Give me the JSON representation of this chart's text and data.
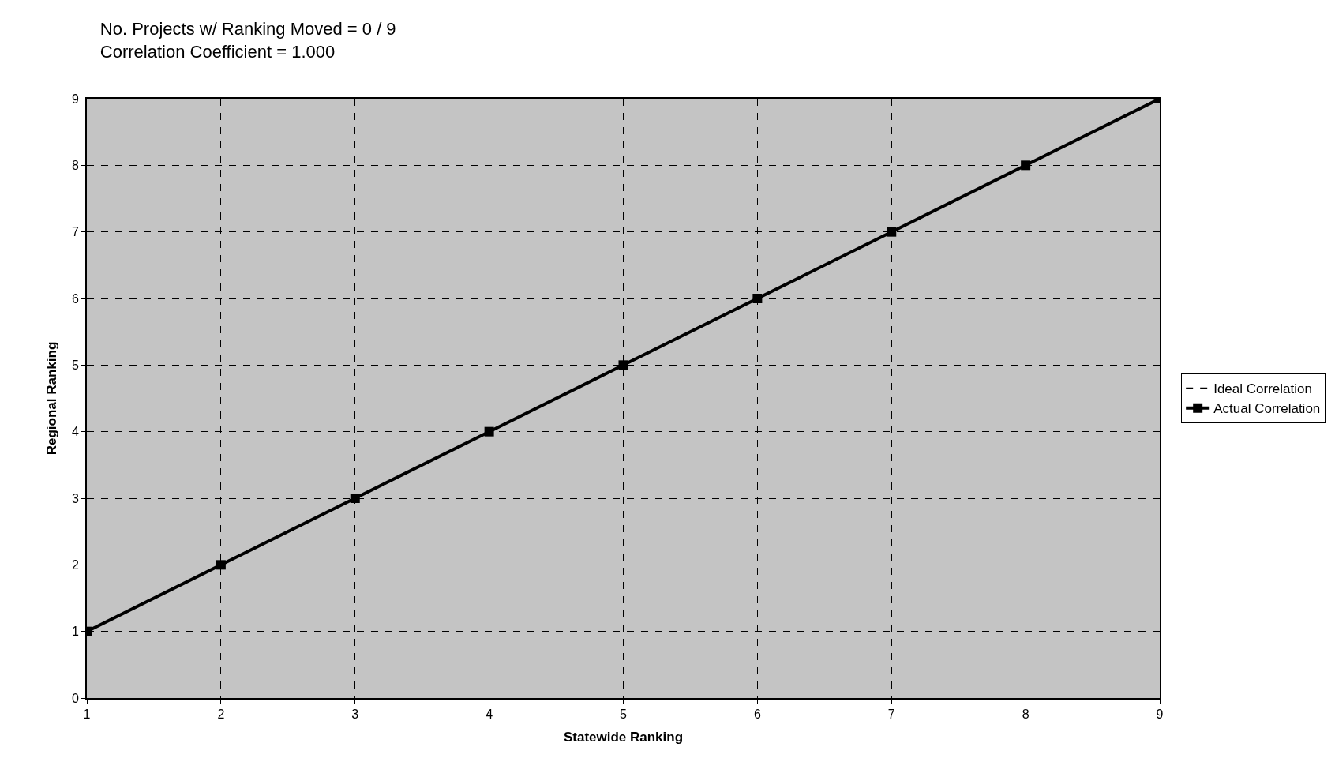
{
  "chart_data": {
    "type": "line",
    "title": "No. Projects w/ Ranking Moved = 0 / 9",
    "subtitle": "Correlation Coefficient = 1.000",
    "xlabel": "Statewide Ranking",
    "ylabel": "Regional Ranking",
    "x": [
      1,
      2,
      3,
      4,
      5,
      6,
      7,
      8,
      9
    ],
    "series": [
      {
        "name": "Ideal Correlation",
        "color": "#000000",
        "line_style": "dashed",
        "marker": "none",
        "values": [
          null,
          null,
          null,
          null,
          null,
          null,
          null,
          null,
          null
        ]
      },
      {
        "name": "Actual Correlation",
        "color": "#000000",
        "line_style": "solid",
        "marker": "square",
        "values": [
          1,
          2,
          3,
          4,
          5,
          6,
          7,
          8,
          9
        ]
      }
    ],
    "xlim": [
      1,
      9
    ],
    "xticks": [
      1,
      2,
      3,
      4,
      5,
      6,
      7,
      8,
      9
    ],
    "ylim": [
      0,
      9
    ],
    "yticks": [
      0,
      1,
      2,
      3,
      4,
      5,
      6,
      7,
      8,
      9
    ],
    "grid": true,
    "legend": "right"
  }
}
